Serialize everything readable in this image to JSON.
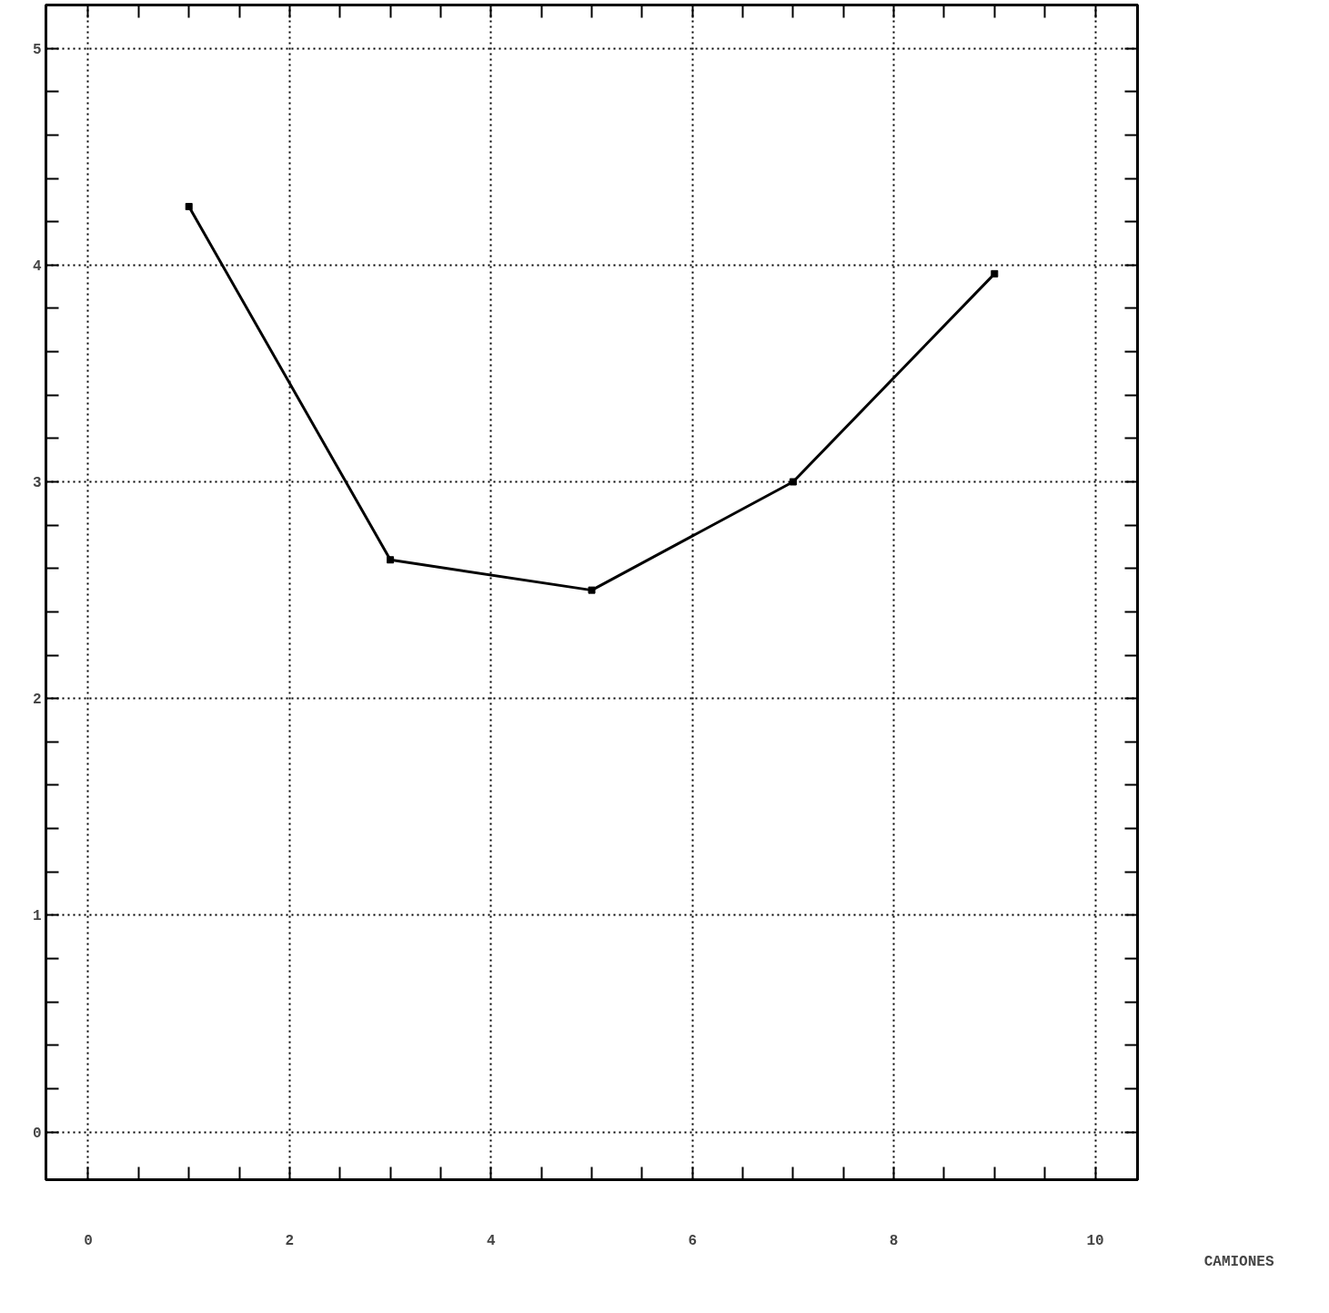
{
  "chart_data": {
    "type": "line",
    "xlabel": "CAMIONES",
    "x": [
      1,
      3,
      5,
      7,
      9
    ],
    "series": [
      {
        "color": "#000000",
        "values": [
          4.27,
          2.64,
          2.5,
          3.0,
          3.96
        ]
      }
    ],
    "xlim": [
      -0.42,
      10.42
    ],
    "ylim": [
      -0.22,
      5.2
    ],
    "xticks": [
      0,
      {
        "value": 0.5,
        "label": null
      },
      {
        "value": 1,
        "label": null
      },
      {
        "value": 1.5,
        "label": null
      },
      2,
      {
        "value": 2.5,
        "label": null
      },
      {
        "value": 3,
        "label": null
      },
      {
        "value": 3.5,
        "label": null
      },
      4,
      {
        "value": 4.5,
        "label": null
      },
      {
        "value": 5,
        "label": null
      },
      {
        "value": 5.5,
        "label": null
      },
      6,
      {
        "value": 6.5,
        "label": null
      },
      {
        "value": 7,
        "label": null
      },
      {
        "value": 7.5,
        "label": null
      },
      8,
      {
        "value": 8.5,
        "label": null
      },
      {
        "value": 9,
        "label": null
      },
      {
        "value": 9.5,
        "label": null
      },
      10
    ],
    "yticks": [
      0,
      {
        "value": 0.2,
        "label": null
      },
      {
        "value": 0.4,
        "label": null
      },
      {
        "value": 0.6,
        "label": null
      },
      {
        "value": 0.8,
        "label": null
      },
      1,
      {
        "value": 1.2,
        "label": null
      },
      {
        "value": 1.4,
        "label": null
      },
      {
        "value": 1.6,
        "label": null
      },
      {
        "value": 1.8,
        "label": null
      },
      2,
      {
        "value": 2.2,
        "label": null
      },
      {
        "value": 2.4,
        "label": null
      },
      {
        "value": 2.6,
        "label": null
      },
      {
        "value": 2.8,
        "label": null
      },
      3,
      {
        "value": 3.2,
        "label": null
      },
      {
        "value": 3.4,
        "label": null
      },
      {
        "value": 3.6,
        "label": null
      },
      {
        "value": 3.8,
        "label": null
      },
      4,
      {
        "value": 4.2,
        "label": null
      },
      {
        "value": 4.4,
        "label": null
      },
      {
        "value": 4.6,
        "label": null
      },
      {
        "value": 4.8,
        "label": null
      },
      5
    ],
    "grid": true,
    "marker": "square",
    "line_style": "solid"
  }
}
